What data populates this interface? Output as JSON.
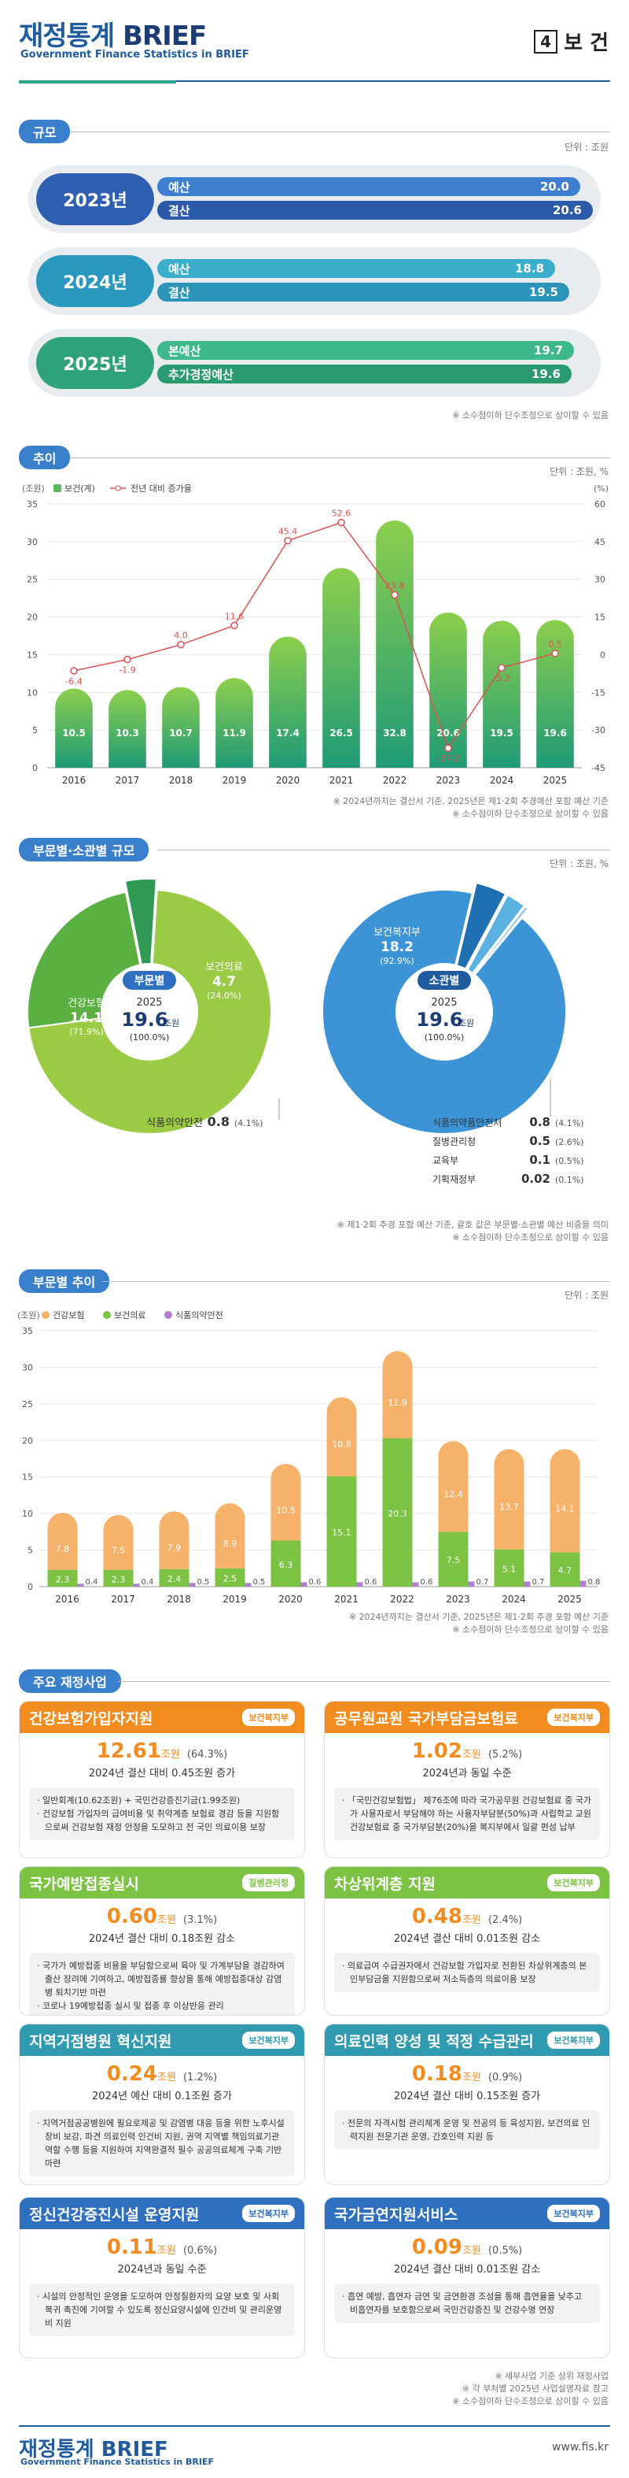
{
  "header": {
    "title_main": "재정통계",
    "title_brief": "BRIEF",
    "subtitle": "Government Finance Statistics in BRIEF",
    "section_number": "4",
    "section_title": "보 건"
  },
  "colors": {
    "blue": "#2f6fbf",
    "teal": "#2aa0b8",
    "green": "#2ea37a",
    "orange": "#f6b26b",
    "lightgreen": "#7cc243",
    "purple": "#b07fcf",
    "red": "#e05050",
    "accent_orange": "#f28c1e"
  },
  "scale": {
    "label": "규모",
    "unit": "단위 : 조원",
    "note": "※ 소수점이하 단수조정으로 상이할 수 있음",
    "rows": [
      {
        "year": "2023년",
        "bars": [
          {
            "label": "예산",
            "value": "20.0"
          },
          {
            "label": "결산",
            "value": "20.6"
          }
        ]
      },
      {
        "year": "2024년",
        "bars": [
          {
            "label": "예산",
            "value": "18.8"
          },
          {
            "label": "결산",
            "value": "19.5"
          }
        ]
      },
      {
        "year": "2025년",
        "bars": [
          {
            "label": "본예산",
            "value": "19.7"
          },
          {
            "label": "추가경정예산",
            "value": "19.6"
          }
        ]
      }
    ]
  },
  "trend": {
    "label": "추이",
    "unit": "단위 : 조원, %",
    "note1": "※ 2024년까지는 결산서 기준, 2025년은 제1·2회 추경예산 포함 예산 기준",
    "note2": "※ 소수점이하 단수조정으로 상이할 수 있음"
  },
  "composition": {
    "label": "부문별·소관별 규모",
    "unit": "단위 : 조원, %",
    "note1": "※ 제1·2회 추경 포함 예산 기준, 괄호 값은 부문별·소관별 예산 비중을 의미",
    "note2": "※ 소수점이하 단수조정으로 상이할 수 있음",
    "sector": {
      "badge": "부문별",
      "year": "2025",
      "total": "19.6",
      "total_unit": "조원",
      "total_pct": "(100.0%)",
      "items": [
        {
          "name": "건강보험",
          "value": "14.1",
          "pct": "(71.9%)"
        },
        {
          "name": "보건의료",
          "value": "4.7",
          "pct": "(24.0%)"
        },
        {
          "name": "식품의약안전",
          "value": "0.8",
          "pct": "(4.1%)"
        }
      ]
    },
    "ministry": {
      "badge": "소관별",
      "year": "2025",
      "total": "19.6",
      "total_unit": "조원",
      "total_pct": "(100.0%)",
      "items": [
        {
          "name": "보건복지부",
          "value": "18.2",
          "pct": "(92.9%)"
        },
        {
          "name": "식품의약품안전처",
          "value": "0.8",
          "pct": "(4.1%)"
        },
        {
          "name": "질병관리청",
          "value": "0.5",
          "pct": "(2.6%)"
        },
        {
          "name": "교육부",
          "value": "0.1",
          "pct": "(0.5%)"
        },
        {
          "name": "기획재정부",
          "value": "0.02",
          "pct": "(0.1%)"
        }
      ]
    }
  },
  "sector_trend": {
    "label": "부문별 추이",
    "unit": "단위 : 조원",
    "note1": "※ 2024년까지는 결산서 기준, 2025년은 제1·2회 추경 포함 예산 기준",
    "note2": "※ 소수점이하 단수조정으로 상이할 수 있음"
  },
  "chart_data": [
    {
      "type": "bar",
      "categories": [
        "2016",
        "2017",
        "2018",
        "2019",
        "2020",
        "2021",
        "2022",
        "2023",
        "2024",
        "2025"
      ],
      "series": [
        {
          "name": "보건(계)",
          "values": [
            10.5,
            10.3,
            10.7,
            11.9,
            17.4,
            26.5,
            32.8,
            20.6,
            19.5,
            19.6
          ]
        },
        {
          "name": "전년 대비 증가율",
          "type": "line",
          "values": [
            -6.4,
            -1.9,
            4.0,
            11.6,
            45.4,
            52.6,
            23.8,
            -37.2,
            -5.2,
            0.5
          ]
        }
      ],
      "left_axis_label": "(조원)",
      "right_axis_label": "(%)",
      "ylim": [
        0,
        35
      ],
      "y2lim": [
        -45,
        60
      ],
      "left_ticks": [
        0,
        5,
        10,
        15,
        20,
        25,
        30,
        35
      ],
      "right_ticks": [
        -45,
        -30,
        -15,
        0,
        15,
        30,
        45,
        60
      ],
      "legend_position": "top-left"
    },
    {
      "type": "bar",
      "stacked": true,
      "categories": [
        "2016",
        "2017",
        "2018",
        "2019",
        "2020",
        "2021",
        "2022",
        "2023",
        "2024",
        "2025"
      ],
      "series": [
        {
          "name": "식품의약안전",
          "values": [
            0.4,
            0.4,
            0.5,
            0.5,
            0.6,
            0.6,
            0.6,
            0.7,
            0.7,
            0.8
          ]
        },
        {
          "name": "보건의료",
          "values": [
            2.3,
            2.3,
            2.4,
            2.5,
            6.3,
            15.1,
            20.3,
            7.5,
            5.1,
            4.7
          ]
        },
        {
          "name": "건강보험",
          "values": [
            7.8,
            7.5,
            7.9,
            8.9,
            10.5,
            10.8,
            11.9,
            12.4,
            13.7,
            14.1
          ]
        }
      ],
      "legend_order": [
        "건강보험",
        "보건의료",
        "식품의약안전"
      ],
      "ylim": [
        0,
        35
      ],
      "left_axis_label": "(조원)",
      "left_ticks": [
        0,
        5,
        10,
        15,
        20,
        25,
        30,
        35
      ],
      "legend_position": "top-left"
    }
  ],
  "programs": {
    "label": "주요 재정사업",
    "notes": [
      "※ 세부사업 기준 상위 재정사업",
      "※ 각 부처별 2025년 사업설명자료 참고",
      "※ 소수점이하 단수조정으로 상이할 수 있음"
    ],
    "cards": [
      {
        "title": "건강보험가입자지원",
        "badge": "보건복지부",
        "amount": "12.61",
        "amount_unit": "조원",
        "pct": "(64.3%)",
        "compare": "2024년 결산 대비 0.45조원 증가",
        "body": [
          "· 일반회계(10.62조원) + 국민건강증진기금(1.99조원)",
          "· 건강보험 가입자의 급여비용 및 취약계층 보험료 경감 등을 지원함으로써 건강보험 재정 안정을 도모하고 전 국민 의료이용 보장"
        ]
      },
      {
        "title": "공무원교원 국가부담금보험료",
        "badge": "보건복지부",
        "amount": "1.02",
        "amount_unit": "조원",
        "pct": "(5.2%)",
        "compare": "2024년과 동일 수준",
        "body": [
          "· 「국민건강보험법」 제76조에 따라 국가공무원 건강보험료 중 국가가 사용자로서 부담해야 하는 사용자부담분(50%)과 사립학교 교원 건강보험료 중 국가부담분(20%)을 복지부에서 일괄 편성 납부"
        ]
      },
      {
        "title": "국가예방접종실시",
        "badge": "질병관리청",
        "amount": "0.60",
        "amount_unit": "조원",
        "pct": "(3.1%)",
        "compare": "2024년 결산 대비 0.18조원 감소",
        "body": [
          "· 국가가 예방접종 비용을 부담함으로써 육아 및 가계부담을 경감하여 출산 장려에 기여하고, 예방접종률 향상을 통해 예방접종대상 감염병 퇴치기반 마련",
          "· 코로나 19예방접종 실시 및 접종 후 이상반응 관리"
        ]
      },
      {
        "title": "차상위계층 지원",
        "badge": "보건복지부",
        "amount": "0.48",
        "amount_unit": "조원",
        "pct": "(2.4%)",
        "compare": "2024년 결산 대비 0.01조원 감소",
        "body": [
          "· 의료급여 수급권자에서 건강보험 가입자로 전환된 차상위계층의 본인부담금을 지원함으로써 저소득층의 의료이용 보장"
        ]
      },
      {
        "title": "지역거점병원 혁신지원",
        "badge": "보건복지부",
        "amount": "0.24",
        "amount_unit": "조원",
        "pct": "(1.2%)",
        "compare": "2024년 예산 대비 0.1조원 증가",
        "body": [
          "· 지역거점공공병원에 필요로제공 및 감염병 대응 등을 위한 노후시설 장비 보강, 파견 의료인력 인건비 지원, 권역 지역별 책임의료기관 역할 수행 등을 지원하여 지역완결적 필수 공공의료체계 구축 기반 마련"
        ]
      },
      {
        "title": "의료인력 양성 및 적정 수급관리",
        "badge": "보건복지부",
        "amount": "0.18",
        "amount_unit": "조원",
        "pct": "(0.9%)",
        "compare": "2024년 결산 대비 0.15조원 증가",
        "body": [
          "· 전문의 자격시험 관리체계 운영 및 전공의 등 육성지원, 보건의료 인력지원 전문기관 운영, 간호인력 지원 등"
        ]
      },
      {
        "title": "정신건강증진시설 운영지원",
        "badge": "보건복지부",
        "amount": "0.11",
        "amount_unit": "조원",
        "pct": "(0.6%)",
        "compare": "2024년과 동일 수준",
        "body": [
          "· 시설의 안정적인 운영을 도모하여 안정질환자의 요양 보호 및 사회복귀 촉진에 기여할 수 있도록 정신요양시설에 인건비 및 관리운영비 지원"
        ]
      },
      {
        "title": "국가금연지원서비스",
        "badge": "보건복지부",
        "amount": "0.09",
        "amount_unit": "조원",
        "pct": "(0.5%)",
        "compare": "2024년 결산 대비 0.01조원 감소",
        "body": [
          "· 흡연 예방, 흡연자 금연 및 금연환경 조성을 통해 흡연율을 낮추고 비흡연자를 보호함으로써 국민건강증진 및 건강수명 연장"
        ]
      }
    ]
  },
  "footer": {
    "title": "재정통계 BRIEF",
    "subtitle": "Government Finance Statistics in BRIEF",
    "url": "www.fis.kr"
  }
}
